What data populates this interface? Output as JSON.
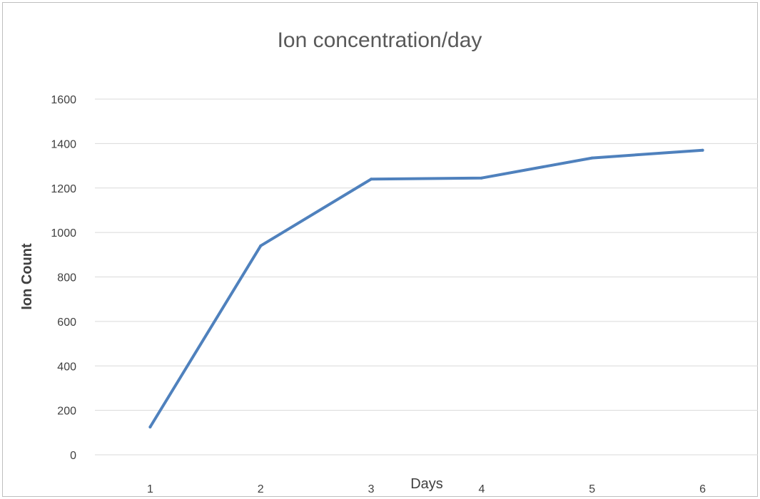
{
  "chart_data": {
    "type": "line",
    "title": "Ion concentration/day",
    "xlabel": "Days",
    "ylabel": "Ion Count",
    "categories": [
      "1",
      "2",
      "3",
      "4",
      "5",
      "6"
    ],
    "series": [
      {
        "values": [
          125,
          940,
          1240,
          1245,
          1335,
          1370
        ],
        "color": "#4f81bd"
      }
    ],
    "ylim": [
      0,
      1600
    ],
    "yticks": [
      0,
      200,
      400,
      600,
      800,
      1000,
      1200,
      1400,
      1600
    ],
    "grid": true,
    "gridline_color": "#d9d9d9",
    "legend": "none"
  }
}
